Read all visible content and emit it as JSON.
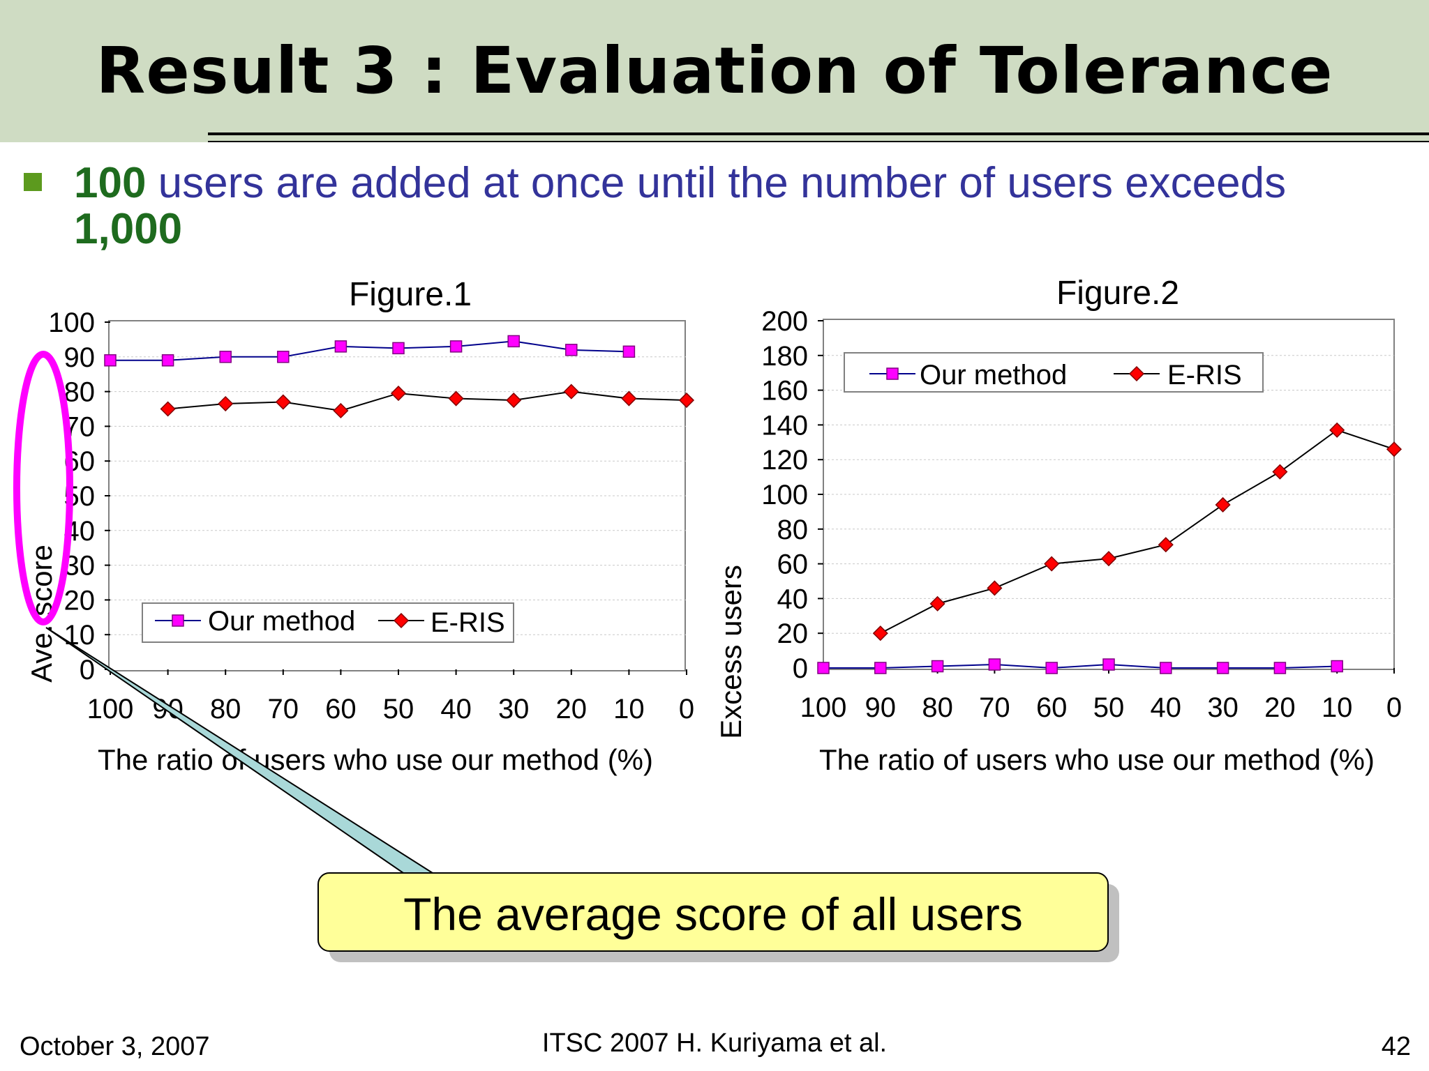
{
  "slide": {
    "title": "Result 3 : Evaluation of Tolerance",
    "bullet": {
      "num1": "100",
      "text1": " users are added at once until the number of users exceeds ",
      "num2": "1,000"
    },
    "callout": "The average score of all users",
    "footer": {
      "date": "October 3, 2007",
      "center": "ITSC 2007 H. Kuriyama et al.",
      "page": "42"
    }
  },
  "colors": {
    "our_method": "#ff00ff",
    "eris": "#ff0000",
    "highlight": "#ff00ff",
    "callout_fill": "#ffff99",
    "pointer_fill": "#a9d8d8"
  },
  "chart_data": [
    {
      "type": "line",
      "title": "Figure.1",
      "ylabel": "Ave. score",
      "xlabel": "The ratio of users who use our method (%)",
      "x": [
        100,
        90,
        80,
        70,
        60,
        50,
        40,
        30,
        20,
        10,
        0
      ],
      "ylim": [
        0,
        100
      ],
      "yticks": [
        0,
        10,
        20,
        30,
        40,
        50,
        60,
        70,
        80,
        90,
        100
      ],
      "grid": true,
      "legend_position": "bottom-left",
      "series": [
        {
          "name": "Our method",
          "marker": "square",
          "values": [
            89,
            89,
            90,
            90,
            93,
            92.5,
            93,
            94.5,
            92,
            91.5,
            null
          ]
        },
        {
          "name": "E-RIS",
          "marker": "diamond",
          "values": [
            null,
            75,
            76.5,
            77,
            74.5,
            79.5,
            78,
            77.5,
            80,
            78,
            77.5
          ]
        }
      ]
    },
    {
      "type": "line",
      "title": "Figure.2",
      "ylabel": "Excess users",
      "xlabel": "The ratio of users who use our method (%)",
      "x": [
        100,
        90,
        80,
        70,
        60,
        50,
        40,
        30,
        20,
        10,
        0
      ],
      "ylim": [
        0,
        200
      ],
      "yticks": [
        0,
        20,
        40,
        60,
        80,
        100,
        120,
        140,
        160,
        180,
        200
      ],
      "grid": true,
      "legend_position": "top-left",
      "series": [
        {
          "name": "Our method",
          "marker": "square",
          "values": [
            0,
            0,
            1,
            2,
            0,
            2,
            0,
            0,
            0,
            1,
            null
          ]
        },
        {
          "name": "E-RIS",
          "marker": "diamond",
          "values": [
            null,
            20,
            37,
            46,
            60,
            63,
            71,
            94,
            113,
            137,
            126
          ]
        }
      ]
    }
  ]
}
